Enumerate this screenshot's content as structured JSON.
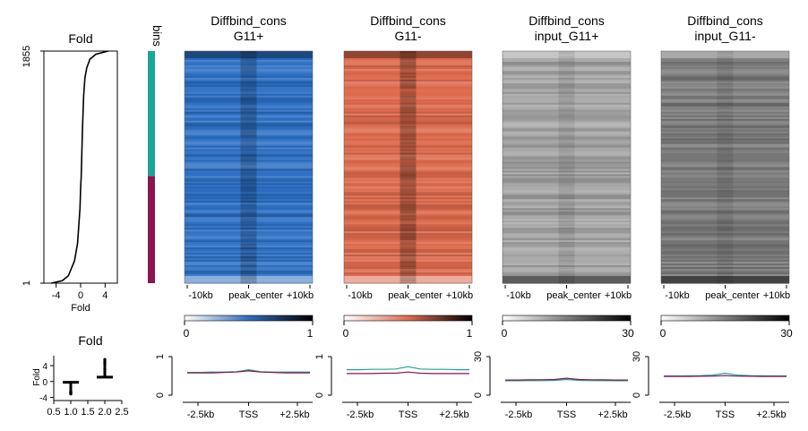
{
  "chart_data": [
    {
      "type": "line",
      "panel": "fold-sorted-curve",
      "title": "Fold",
      "xlabel": "Fold",
      "xticks": [
        "-4",
        "0",
        "4"
      ],
      "xlim": [
        -6,
        6
      ],
      "yticks": [
        "1",
        "1855"
      ],
      "ylim": [
        1,
        1855
      ],
      "points": [
        [
          -4.8,
          1
        ],
        [
          -3,
          20
        ],
        [
          -2,
          60
        ],
        [
          -1,
          180
        ],
        [
          -0.5,
          320
        ],
        [
          -0.1,
          600
        ],
        [
          0.0,
          760
        ],
        [
          0.1,
          860
        ],
        [
          0.3,
          1240
        ],
        [
          0.5,
          1500
        ],
        [
          0.7,
          1640
        ],
        [
          1.0,
          1720
        ],
        [
          1.5,
          1790
        ],
        [
          2.5,
          1830
        ],
        [
          4.5,
          1855
        ]
      ]
    },
    {
      "type": "bar",
      "panel": "bins",
      "label": "bins",
      "bins": [
        {
          "from": 1,
          "to": 1000,
          "color": "#1aa79a"
        },
        {
          "from": 1000,
          "to": 1855,
          "color": "#8c1452"
        }
      ]
    },
    {
      "type": "heatmap",
      "panel": "Diffbind_cons G11+",
      "title": "Diffbind_cons",
      "subtitle": "G11+",
      "xticks": [
        "-10kb",
        "peak_center",
        "+10kb"
      ],
      "colorbar": {
        "min_label": "0",
        "max_label": "1",
        "colors": [
          "#ffffff",
          "#2f6ebf",
          "#000000"
        ]
      },
      "base_color": "#2c6fc4",
      "center_signal": 0.35
    },
    {
      "type": "heatmap",
      "panel": "Diffbind_cons G11-",
      "title": "Diffbind_cons",
      "subtitle": "G11-",
      "xticks": [
        "-10kb",
        "peak_center",
        "+10kb"
      ],
      "colorbar": {
        "min_label": "0",
        "max_label": "1",
        "colors": [
          "#ffffff",
          "#e06a4f",
          "#000000"
        ]
      },
      "base_color": "#de6a4c",
      "center_signal": 0.45
    },
    {
      "type": "heatmap",
      "panel": "input_G11+",
      "title": "Diffbind_cons",
      "subtitle": "input_G11+",
      "xticks": [
        "-10kb",
        "peak_center",
        "+10kb"
      ],
      "colorbar": {
        "min_label": "0",
        "max_label": "30",
        "colors": [
          "#ffffff",
          "#000000"
        ]
      },
      "base_color": "#a8a8a8",
      "center_signal": 0.15
    },
    {
      "type": "heatmap",
      "panel": "input_G11-",
      "title": "Diffbind_cons",
      "subtitle": "input_G11-",
      "xticks": [
        "-10kb",
        "peak_center",
        "+10kb"
      ],
      "colorbar": {
        "min_label": "0",
        "max_label": "30",
        "colors": [
          "#ffffff",
          "#000000"
        ]
      },
      "base_color": "#7a7a7a",
      "center_signal": 0.15
    },
    {
      "type": "scatter",
      "panel": "fold-by-bin",
      "title": "Fold",
      "ylabel": "Fold",
      "xticks": [
        "0.5",
        "1.0",
        "1.5",
        "2.0",
        "2.5"
      ],
      "xlim": [
        0.5,
        2.5
      ],
      "yticks": [
        "-4",
        "0",
        "4"
      ],
      "ylim": [
        -4.8,
        6.5
      ],
      "groups": [
        {
          "x": 1,
          "median": -0.2,
          "low": -3.2,
          "high": -0.1
        },
        {
          "x": 2,
          "median": 1.1,
          "high": 5.5,
          "low": 0.9
        }
      ]
    },
    {
      "type": "line",
      "panel": "profile Diffbind_cons G11+",
      "xticks": [
        "-2.5kb",
        "TSS",
        "+2.5kb"
      ],
      "yticks": [
        "0",
        "1"
      ],
      "ylim": [
        0,
        1
      ],
      "series": [
        {
          "color": "#1aa79a",
          "values": [
            0.59,
            0.59,
            0.6,
            0.6,
            0.61,
            0.66,
            0.61,
            0.6,
            0.6,
            0.6,
            0.6
          ]
        },
        {
          "color": "#8c1452",
          "values": [
            0.58,
            0.58,
            0.58,
            0.59,
            0.6,
            0.63,
            0.6,
            0.59,
            0.58,
            0.58,
            0.58
          ]
        }
      ]
    },
    {
      "type": "line",
      "panel": "profile Diffbind_cons G11-",
      "xticks": [
        "-2.5kb",
        "TSS",
        "+2.5kb"
      ],
      "yticks": [
        "0",
        "1"
      ],
      "ylim": [
        0,
        1
      ],
      "series": [
        {
          "color": "#1aa79a",
          "values": [
            0.66,
            0.66,
            0.67,
            0.67,
            0.68,
            0.74,
            0.68,
            0.67,
            0.67,
            0.66,
            0.66
          ]
        },
        {
          "color": "#8c1452",
          "values": [
            0.56,
            0.56,
            0.56,
            0.57,
            0.57,
            0.6,
            0.57,
            0.56,
            0.56,
            0.56,
            0.56
          ]
        }
      ]
    },
    {
      "type": "line",
      "panel": "profile input_G11+",
      "xticks": [
        "-2.5kb",
        "TSS",
        "+2.5kb"
      ],
      "yticks": [
        "0",
        "30"
      ],
      "ylim": [
        0,
        30
      ],
      "series": [
        {
          "color": "#1aa79a",
          "values": [
            11.2,
            11.2,
            11.3,
            11.3,
            11.5,
            12.2,
            11.5,
            11.3,
            11.3,
            11.2,
            11.2
          ]
        },
        {
          "color": "#8c1452",
          "values": [
            11.8,
            11.8,
            11.9,
            12.0,
            12.2,
            13.2,
            12.2,
            12.0,
            11.9,
            11.8,
            11.8
          ]
        }
      ]
    },
    {
      "type": "line",
      "panel": "profile input_G11-",
      "xticks": [
        "-2.5kb",
        "TSS",
        "+2.5kb"
      ],
      "yticks": [
        "0",
        "30"
      ],
      "ylim": [
        0,
        30
      ],
      "series": [
        {
          "color": "#1aa79a",
          "values": [
            15.0,
            15.0,
            15.1,
            15.2,
            15.6,
            17.0,
            15.6,
            15.2,
            15.1,
            15.0,
            15.0
          ]
        },
        {
          "color": "#8c1452",
          "values": [
            14.6,
            14.6,
            14.6,
            14.7,
            14.8,
            15.2,
            14.8,
            14.7,
            14.6,
            14.6,
            14.6
          ]
        }
      ]
    }
  ]
}
